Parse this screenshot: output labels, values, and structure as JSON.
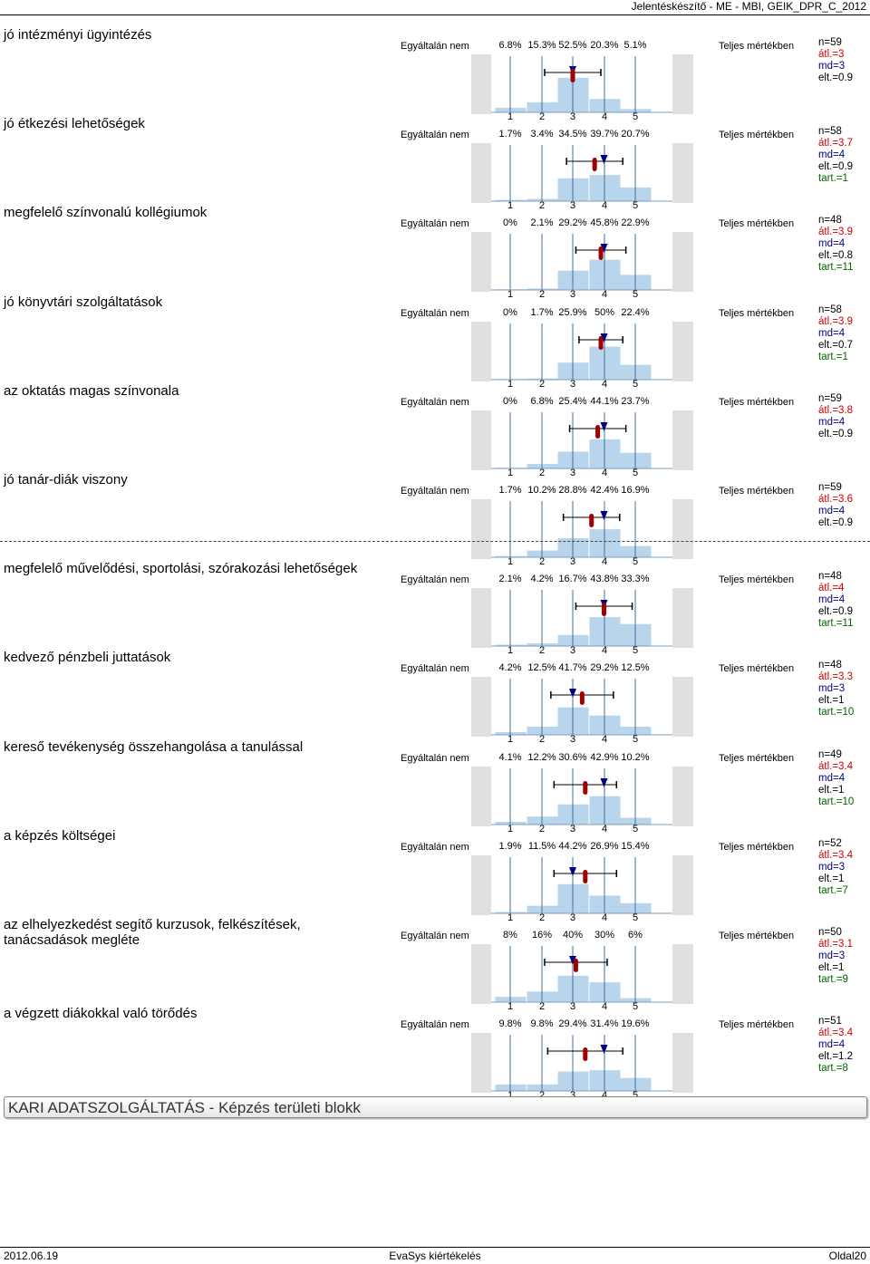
{
  "header": {
    "title": "Jelentéskészítő - ME - MBI, GEIK_DPR_C_2012"
  },
  "scale": {
    "left_label": "Egyáltalán nem",
    "right_label": "Teljes mértékben",
    "ticks": [
      "1",
      "2",
      "3",
      "4",
      "5"
    ]
  },
  "items": [
    {
      "question": "jó intézményi ügyintézés",
      "pct": [
        "6.8%",
        "15.3%",
        "52.5%",
        "20.3%",
        "5.1%"
      ],
      "values": [
        6.8,
        15.3,
        52.5,
        20.3,
        5.1
      ],
      "mean": 3.0,
      "median": 3,
      "sd": 0.9,
      "stats": {
        "n": "n=59",
        "mean": "átl.=3",
        "md": "md=3",
        "sd": "elt.=0.9",
        "tart": ""
      }
    },
    {
      "question": "jó étkezési lehetőségek",
      "pct": [
        "1.7%",
        "3.4%",
        "34.5%",
        "39.7%",
        "20.7%"
      ],
      "values": [
        1.7,
        3.4,
        34.5,
        39.7,
        20.7
      ],
      "mean": 3.7,
      "median": 4,
      "sd": 0.9,
      "stats": {
        "n": "n=58",
        "mean": "átl.=3.7",
        "md": "md=4",
        "sd": "elt.=0.9",
        "tart": "tart.=1"
      }
    },
    {
      "question": "megfelelő színvonalú kollégiumok",
      "pct": [
        "0%",
        "2.1%",
        "29.2%",
        "45.8%",
        "22.9%"
      ],
      "values": [
        0,
        2.1,
        29.2,
        45.8,
        22.9
      ],
      "mean": 3.9,
      "median": 4,
      "sd": 0.8,
      "stats": {
        "n": "n=48",
        "mean": "átl.=3.9",
        "md": "md=4",
        "sd": "elt.=0.8",
        "tart": "tart.=11"
      }
    },
    {
      "question": "jó könyvtári szolgáltatások",
      "pct": [
        "0%",
        "1.7%",
        "25.9%",
        "50%",
        "22.4%"
      ],
      "values": [
        0,
        1.7,
        25.9,
        50,
        22.4
      ],
      "mean": 3.9,
      "median": 4,
      "sd": 0.7,
      "stats": {
        "n": "n=58",
        "mean": "átl.=3.9",
        "md": "md=4",
        "sd": "elt.=0.7",
        "tart": "tart.=1"
      }
    },
    {
      "question": "az oktatás magas színvonala",
      "pct": [
        "0%",
        "6.8%",
        "25.4%",
        "44.1%",
        "23.7%"
      ],
      "values": [
        0,
        6.8,
        25.4,
        44.1,
        23.7
      ],
      "mean": 3.8,
      "median": 4,
      "sd": 0.9,
      "stats": {
        "n": "n=59",
        "mean": "átl.=3.8",
        "md": "md=4",
        "sd": "elt.=0.9",
        "tart": ""
      }
    },
    {
      "question": "jó tanár-diák viszony",
      "pct": [
        "1.7%",
        "10.2%",
        "28.8%",
        "42.4%",
        "16.9%"
      ],
      "values": [
        1.7,
        10.2,
        28.8,
        42.4,
        16.9
      ],
      "mean": 3.6,
      "median": 4,
      "sd": 0.9,
      "stats": {
        "n": "n=59",
        "mean": "átl.=3.6",
        "md": "md=4",
        "sd": "elt.=0.9",
        "tart": ""
      }
    },
    {
      "question": "megfelelő művelődési, sportolási, szórakozási lehetőségek",
      "pct": [
        "2.1%",
        "4.2%",
        "16.7%",
        "43.8%",
        "33.3%"
      ],
      "values": [
        2.1,
        4.2,
        16.7,
        43.8,
        33.3
      ],
      "mean": 4.0,
      "median": 4,
      "sd": 0.9,
      "stats": {
        "n": "n=48",
        "mean": "átl.=4",
        "md": "md=4",
        "sd": "elt.=0.9",
        "tart": "tart.=11"
      }
    },
    {
      "question": "kedvező pénzbeli juttatások",
      "pct": [
        "4.2%",
        "12.5%",
        "41.7%",
        "29.2%",
        "12.5%"
      ],
      "values": [
        4.2,
        12.5,
        41.7,
        29.2,
        12.5
      ],
      "mean": 3.3,
      "median": 3,
      "sd": 1,
      "stats": {
        "n": "n=48",
        "mean": "átl.=3.3",
        "md": "md=3",
        "sd": "elt.=1",
        "tart": "tart.=10"
      }
    },
    {
      "question": "kereső tevékenység összehangolása a tanulással",
      "pct": [
        "4.1%",
        "12.2%",
        "30.6%",
        "42.9%",
        "10.2%"
      ],
      "values": [
        4.1,
        12.2,
        30.6,
        42.9,
        10.2
      ],
      "mean": 3.4,
      "median": 4,
      "sd": 1,
      "stats": {
        "n": "n=49",
        "mean": "átl.=3.4",
        "md": "md=4",
        "sd": "elt.=1",
        "tart": "tart.=10"
      }
    },
    {
      "question": "a képzés költségei",
      "pct": [
        "1.9%",
        "11.5%",
        "44.2%",
        "26.9%",
        "15.4%"
      ],
      "values": [
        1.9,
        11.5,
        44.2,
        26.9,
        15.4
      ],
      "mean": 3.4,
      "median": 3,
      "sd": 1,
      "stats": {
        "n": "n=52",
        "mean": "átl.=3.4",
        "md": "md=3",
        "sd": "elt.=1",
        "tart": "tart.=7"
      }
    },
    {
      "question": "az elhelyezkedést segítő kurzusok, felkészítések, tanácsadások megléte",
      "pct": [
        "8%",
        "16%",
        "40%",
        "30%",
        "6%"
      ],
      "values": [
        8,
        16,
        40,
        30,
        6
      ],
      "mean": 3.1,
      "median": 3,
      "sd": 1,
      "stats": {
        "n": "n=50",
        "mean": "átl.=3.1",
        "md": "md=3",
        "sd": "elt.=1",
        "tart": "tart.=9"
      }
    },
    {
      "question": "a végzett diákokkal való törődés",
      "pct": [
        "9.8%",
        "9.8%",
        "29.4%",
        "31.4%",
        "19.6%"
      ],
      "values": [
        9.8,
        9.8,
        29.4,
        31.4,
        19.6
      ],
      "mean": 3.4,
      "median": 4,
      "sd": 1.2,
      "stats": {
        "n": "n=51",
        "mean": "átl.=3.4",
        "md": "md=4",
        "sd": "elt.=1.2",
        "tart": "tart.=8"
      }
    }
  ],
  "section": {
    "title": "KARI ADATSZOLGÁLTATÁS - Képzés területi blokk"
  },
  "footer": {
    "date": "2012.06.19",
    "center": "EvaSys kiértékelés",
    "page": "Oldal20"
  },
  "colors": {
    "bar": "#b9d5ec",
    "gridline": "#3f6f9f",
    "mean_marker": "#a00000",
    "median_marker": "#000080",
    "side_panel": "#e0e0e0"
  }
}
